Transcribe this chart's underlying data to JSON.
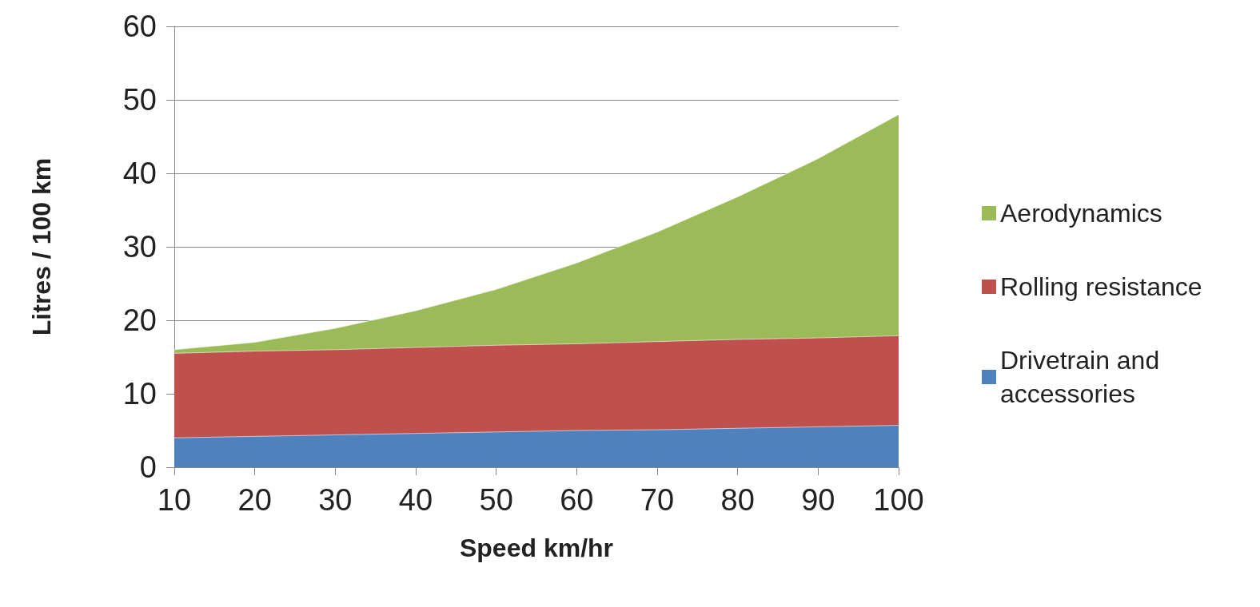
{
  "chart_data": {
    "type": "area",
    "stacked": true,
    "xlabel": "Speed km/hr",
    "ylabel": "Litres / 100 km",
    "x": [
      10,
      20,
      30,
      40,
      50,
      60,
      70,
      80,
      90,
      100
    ],
    "series": [
      {
        "name": "Drivetrain and accessories",
        "color": "#4f81bd",
        "values": [
          4.0,
          4.2,
          4.4,
          4.6,
          4.8,
          5.0,
          5.1,
          5.3,
          5.5,
          5.7
        ]
      },
      {
        "name": "Rolling resistance",
        "color": "#c0504d",
        "values": [
          11.5,
          11.6,
          11.6,
          11.7,
          11.8,
          11.8,
          12.0,
          12.1,
          12.1,
          12.2
        ]
      },
      {
        "name": "Aerodynamics",
        "color": "#9bbb59",
        "values": [
          0.5,
          1.2,
          2.9,
          5.0,
          7.6,
          11.0,
          14.9,
          19.4,
          24.4,
          30.1
        ]
      }
    ],
    "xlim": [
      10,
      100
    ],
    "xticks": [
      10,
      20,
      30,
      40,
      50,
      60,
      70,
      80,
      90,
      100
    ],
    "ylim": [
      0,
      60
    ],
    "yticks": [
      0,
      10,
      20,
      30,
      40,
      50,
      60
    ],
    "grid": "y",
    "legend": "right"
  }
}
